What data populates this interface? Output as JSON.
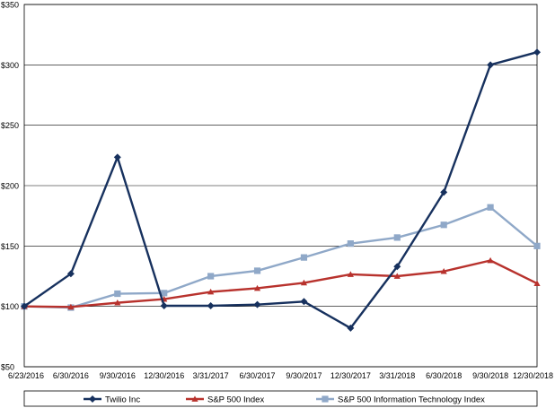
{
  "chart_data": {
    "type": "line",
    "title": "",
    "xlabel": "",
    "ylabel": "",
    "categories": [
      "6/23/2016",
      "6/30/2016",
      "9/30/2016",
      "12/30/2016",
      "3/31/2017",
      "6/30/2017",
      "9/30/2017",
      "12/30/2017",
      "3/31/2018",
      "6/30/2018",
      "9/30/2018",
      "12/30/2018"
    ],
    "y_ticks": [
      {
        "value": 50,
        "label": "$50"
      },
      {
        "value": 100,
        "label": "$100"
      },
      {
        "value": 150,
        "label": "$150"
      },
      {
        "value": 200,
        "label": "$200"
      },
      {
        "value": 250,
        "label": "$250"
      },
      {
        "value": 300,
        "label": "$300"
      },
      {
        "value": 350,
        "label": "$350"
      }
    ],
    "ylim": [
      50,
      350
    ],
    "grid": "horizontal",
    "legend_position": "bottom",
    "series": [
      {
        "name": "Twilio Inc",
        "color": "#17315e",
        "marker": "diamond",
        "values": [
          100,
          127,
          223.5,
          100.5,
          100.5,
          101.5,
          104,
          82,
          133,
          194.5,
          300,
          310.5
        ]
      },
      {
        "name": "S&P 500 Index",
        "color": "#b8322d",
        "marker": "triangle",
        "values": [
          100,
          99.5,
          103,
          106,
          112,
          115,
          119.5,
          126.5,
          125,
          129,
          138,
          119
        ]
      },
      {
        "name": "S&P 500 Information Technology Index",
        "color": "#8fa8c8",
        "marker": "square",
        "values": [
          100,
          99,
          110.5,
          111,
          125,
          129.5,
          140.5,
          152,
          157,
          167.5,
          182,
          150
        ]
      }
    ]
  }
}
